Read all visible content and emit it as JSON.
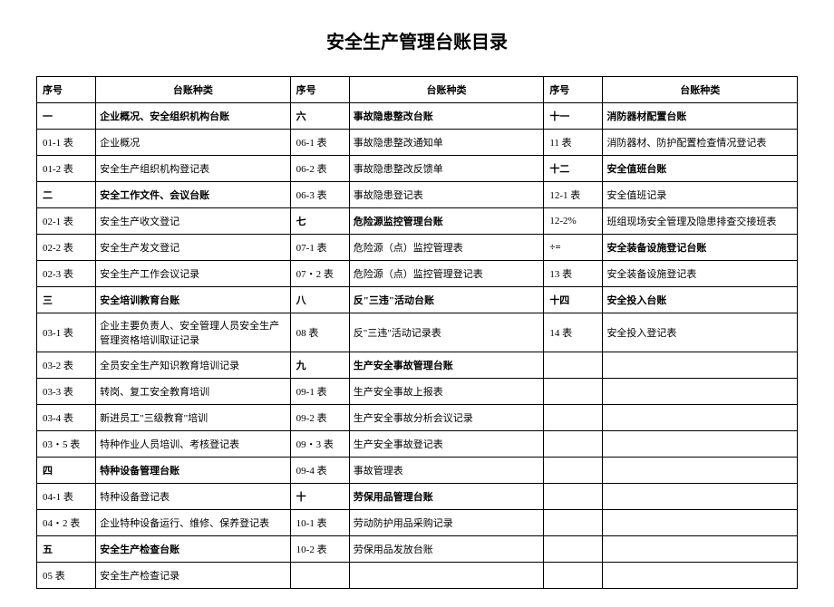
{
  "title": "安全生产管理台账目录",
  "headers": {
    "seq": "序号",
    "type": "台账种类"
  },
  "rows": [
    [
      {
        "seq": "一",
        "type": "企业概况、安全组织机构台账",
        "bold": true
      },
      {
        "seq": "六",
        "type": "事故隐患整改台账",
        "bold": true
      },
      {
        "seq": "十一",
        "type": "消防器材配置台账",
        "bold": true
      }
    ],
    [
      {
        "seq": "01-1 表",
        "type": "企业概况"
      },
      {
        "seq": "06-1 表",
        "type": "事故隐患整改通知单"
      },
      {
        "seq": "11 表",
        "type": "消防器材、防护配置检查情况登记表"
      }
    ],
    [
      {
        "seq": "01-2 表",
        "type": "安全生产组织机构登记表"
      },
      {
        "seq": "06-2 表",
        "type": "事故隐患整改反馈单"
      },
      {
        "seq": "十二",
        "type": "安全值班台账",
        "bold": true
      }
    ],
    [
      {
        "seq": "二",
        "type": "安全工作文件、会议台账",
        "bold": true
      },
      {
        "seq": "06-3 表",
        "type": "事故隐患登记表"
      },
      {
        "seq": "12-1 表",
        "type": "安全值班记录"
      }
    ],
    [
      {
        "seq": "02-1 表",
        "type": "安全生产收文登记"
      },
      {
        "seq": "七",
        "type": "危险源监控管理台账",
        "bold": true
      },
      {
        "seq": "12-2%",
        "type": "班组现场安全管理及隐患排查交接班表"
      }
    ],
    [
      {
        "seq": "02-2 表",
        "type": "安全生产发文登记"
      },
      {
        "seq": "07-1 表",
        "type": "危险源（点）监控管理表"
      },
      {
        "seq": "÷=",
        "type": "安全装备设施登记台账",
        "bold": true
      }
    ],
    [
      {
        "seq": "02-3 表",
        "type": "安全生产工作会议记录"
      },
      {
        "seq": "07・2 表",
        "type": "危险源（点）监控管理登记表"
      },
      {
        "seq": "13 表",
        "type": "安全装备设施登记表"
      }
    ],
    [
      {
        "seq": "三",
        "type": "安全培训教育台账",
        "bold": true
      },
      {
        "seq": "八",
        "type": "反\"三违\"活动台账",
        "bold": true
      },
      {
        "seq": "十四",
        "type": "安全投入台账",
        "bold": true
      }
    ],
    [
      {
        "seq": "03-1 表",
        "type": "企业主要负责人、安全管理人员安全生产管理资格培训取证记录"
      },
      {
        "seq": "08 表",
        "type": "反\"三违\"活动记录表"
      },
      {
        "seq": "14 表",
        "type": "安全投入登记表"
      }
    ],
    [
      {
        "seq": "03-2 表",
        "type": "全员安全生产知识教育培训记录"
      },
      {
        "seq": "九",
        "type": "生产安全事故管理台账",
        "bold": true
      },
      {
        "seq": "",
        "type": ""
      }
    ],
    [
      {
        "seq": "03-3 表",
        "type": "转岗、复工安全教育培训"
      },
      {
        "seq": "09-1 表",
        "type": "生产安全事故上报表"
      },
      {
        "seq": "",
        "type": ""
      }
    ],
    [
      {
        "seq": "03-4 表",
        "type": "新进员工\"三级教育\"培训"
      },
      {
        "seq": "09-2 表",
        "type": "生产安全事故分析会议记录"
      },
      {
        "seq": "",
        "type": ""
      }
    ],
    [
      {
        "seq": "03・5 表",
        "type": "特种作业人员培训、考核登记表"
      },
      {
        "seq": "09・3 表",
        "type": "生产安全事故登记表"
      },
      {
        "seq": "",
        "type": ""
      }
    ],
    [
      {
        "seq": "四",
        "type": "特种设备管理台账",
        "bold": true
      },
      {
        "seq": "09-4 表",
        "type": "事故管理表"
      },
      {
        "seq": "",
        "type": ""
      }
    ],
    [
      {
        "seq": "04-1 表",
        "type": "特种设备登记表"
      },
      {
        "seq": "十",
        "type": "劳保用品管理台账",
        "bold": true
      },
      {
        "seq": "",
        "type": ""
      }
    ],
    [
      {
        "seq": "04・2 表",
        "type": "企业特种设备运行、维修、保养登记表"
      },
      {
        "seq": "10-1 表",
        "type": "劳动防护用品采购记录"
      },
      {
        "seq": "",
        "type": ""
      }
    ],
    [
      {
        "seq": "五",
        "type": "安全生产检查台账",
        "bold": true
      },
      {
        "seq": "10-2 表",
        "type": "劳保用品发放台账"
      },
      {
        "seq": "",
        "type": ""
      }
    ],
    [
      {
        "seq": "05 表",
        "type": "安全生产检查记录"
      },
      {
        "seq": "",
        "type": ""
      },
      {
        "seq": "",
        "type": ""
      }
    ]
  ]
}
